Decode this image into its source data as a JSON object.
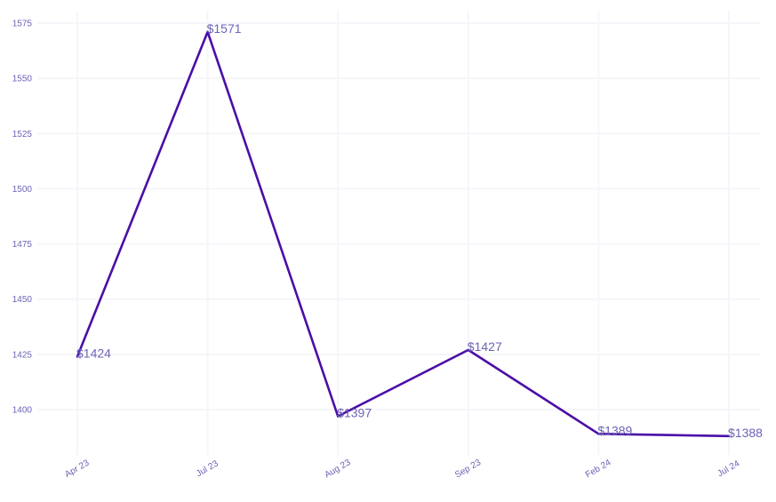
{
  "chart_data": {
    "type": "line",
    "title": "",
    "xlabel": "",
    "ylabel": "",
    "categories": [
      "Apr 23",
      "Jul 23",
      "Aug 23",
      "Sep 23",
      "Feb 24",
      "Jul 24"
    ],
    "series": [
      {
        "values": [
          1424,
          1571,
          1397,
          1427,
          1389,
          1388
        ],
        "data_labels": [
          "$1424",
          "$1571",
          "$1397",
          "$1427",
          "$1389",
          "$1388"
        ]
      }
    ],
    "yticks": [
      1400,
      1425,
      1450,
      1475,
      1500,
      1525,
      1550,
      1575
    ],
    "ylim": [
      1382,
      1580
    ],
    "grid": true,
    "legend": "none"
  },
  "colors": {
    "line": "#4B0EA8",
    "tick_text": "#6B63B5",
    "label_text": "#6B63B5",
    "grid": "#F6F5FA",
    "background": "#FFFFFF"
  }
}
